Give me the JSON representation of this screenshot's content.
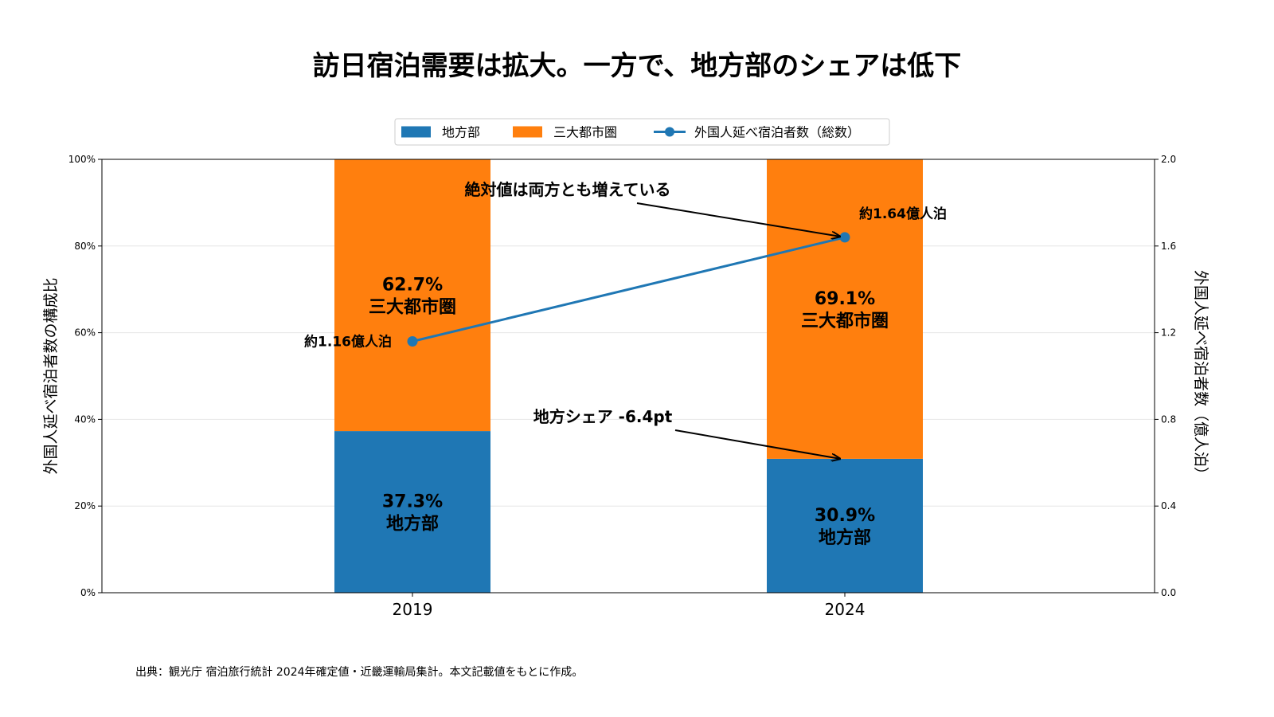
{
  "chart_data": {
    "type": "bar",
    "subtype": "stacked-percent-with-line-secondary-axis",
    "title": "訪日宿泊需要は拡大。一方で、地方部のシェアは低下",
    "categories": [
      "2019",
      "2024"
    ],
    "series": [
      {
        "name": "地方部",
        "kind": "bar",
        "axis": "left",
        "color": "#1f77b4",
        "values": [
          37.3,
          30.9
        ],
        "labels": [
          "37.3%\n地方部",
          "30.9%\n地方部"
        ]
      },
      {
        "name": "三大都市圏",
        "kind": "bar",
        "axis": "left",
        "color": "#ff7f0e",
        "values": [
          62.7,
          69.1
        ],
        "labels": [
          "62.7%\n三大都市圏",
          "69.1%\n三大都市圏"
        ]
      },
      {
        "name": "外国人延べ宿泊者数（総数）",
        "kind": "line",
        "axis": "right",
        "color": "#1f77b4",
        "values": [
          1.16,
          1.64
        ],
        "labels": [
          "約1.16億人泊",
          "約1.64億人泊"
        ]
      }
    ],
    "ylabel": "外国人延べ宿泊者数の構成比",
    "ylim": [
      0,
      100
    ],
    "yticks": [
      "0%",
      "20%",
      "40%",
      "60%",
      "80%",
      "100%"
    ],
    "y2label": "外国人延べ宿泊者数（億人泊）",
    "y2lim": [
      0,
      2.0
    ],
    "y2ticks": [
      "0.0",
      "0.4",
      "0.8",
      "1.2",
      "1.6",
      "2.0"
    ],
    "grid": true,
    "legend_position": "top-center",
    "annotations": [
      {
        "text": "絶対値は両方とも増えている",
        "target": "line-point-2024"
      },
      {
        "text": "地方シェア -6.4pt",
        "target": "bar-top-2024-地方部"
      }
    ],
    "footer": "出典：観光庁 宿泊旅行統計 2024年確定値・近畿運輸局集計。本文記載値をもとに作成。"
  }
}
